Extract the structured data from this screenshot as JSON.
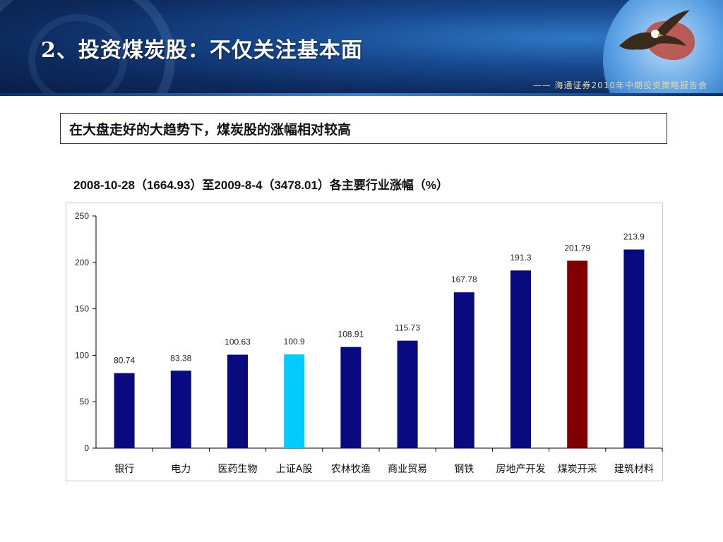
{
  "slide": {
    "title": "2、投资煤炭股：不仅关注基本面",
    "report_tag": "—— 海通证券2010年中期投资策略报告会",
    "subtitle": "在大盘走好的大趋势下，煤炭股的涨幅相对较高"
  },
  "icons": [
    "swirl-pattern",
    "eagle-icon",
    "globe-icon"
  ],
  "chart_data": {
    "type": "bar",
    "title": "2008-10-28（1664.93）至2009-8-4（3478.01）各主要行业涨幅（%）",
    "xlabel": "",
    "ylabel": "",
    "ylim": [
      0,
      250
    ],
    "yticks": [
      0,
      50,
      100,
      150,
      200,
      250
    ],
    "grid": false,
    "legend": "none",
    "categories": [
      "银行",
      "电力",
      "医药生物",
      "上证A股",
      "农林牧渔",
      "商业贸易",
      "钢铁",
      "房地产开发",
      "煤炭开采",
      "建筑材料"
    ],
    "values": [
      80.74,
      83.38,
      100.63,
      100.9,
      108.91,
      115.73,
      167.78,
      191.3,
      201.79,
      213.9
    ],
    "data_labels": [
      "80.74",
      "83.38",
      "100.63",
      "100.9",
      "108.91",
      "115.73",
      "167.78",
      "191.3",
      "201.79",
      "213.9"
    ],
    "colors": [
      "#0a0a80",
      "#0a0a80",
      "#0a0a80",
      "#00ccff",
      "#0a0a80",
      "#0a0a80",
      "#0a0a80",
      "#0a0a80",
      "#800000",
      "#0a0a80"
    ]
  }
}
